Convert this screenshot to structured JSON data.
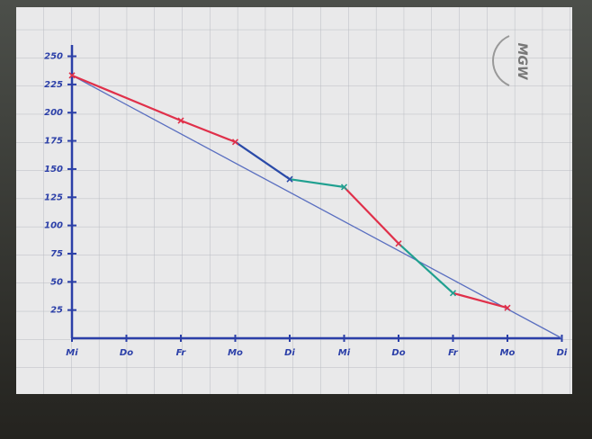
{
  "chart_data": {
    "type": "line",
    "categories": [
      "Mi",
      "Do",
      "Fr",
      "Mo",
      "Di",
      "Mi",
      "Do",
      "Fr",
      "Mo",
      "Di"
    ],
    "ylim": [
      0,
      260
    ],
    "yticks": [
      25,
      50,
      75,
      100,
      125,
      150,
      175,
      200,
      225,
      250
    ],
    "axis_color": "#2b3fa8",
    "series": [
      {
        "color": "#5a6fc0",
        "values": [
          233,
          null,
          null,
          null,
          null,
          null,
          null,
          null,
          null,
          0
        ]
      },
      {
        "color": "#2a4aa8",
        "values": [
          233,
          null,
          193,
          174,
          141,
          134,
          84,
          40,
          27,
          null
        ],
        "segment_colors": [
          "#e0304a",
          "#e0304a",
          "#2a4aa8",
          "#20a090",
          "#e0304a",
          "#20a090",
          "#e0304a"
        ]
      }
    ]
  }
}
